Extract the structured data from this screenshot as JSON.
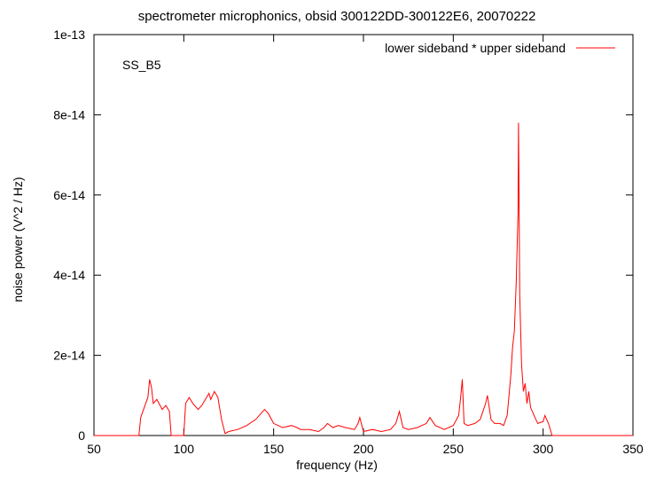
{
  "chart_data": {
    "type": "line",
    "title": "spectrometer microphonics, obsid 300122DD-300122E6, 20070222",
    "xlabel": "frequency (Hz)",
    "ylabel": "noise power (V^2 / Hz)",
    "annotation": "SS_B5",
    "xlim": [
      50,
      350
    ],
    "ylim": [
      0,
      1e-13
    ],
    "xticks": [
      50,
      100,
      150,
      200,
      250,
      300,
      350
    ],
    "xtick_labels": [
      "50",
      "100",
      "150",
      "200",
      "250",
      "300",
      "350"
    ],
    "yticks": [
      0,
      2e-14,
      4e-14,
      6e-14,
      8e-14,
      1e-13
    ],
    "ytick_labels": [
      "0",
      "2e-14",
      "4e-14",
      "6e-14",
      "8e-14",
      "1e-13"
    ],
    "grid": false,
    "legend_position": "top-right",
    "series": [
      {
        "name": "lower sideband * upper sideband",
        "color": "#ff0000",
        "x": [
          50,
          75,
          76,
          78,
          80,
          81,
          82,
          83,
          85,
          88,
          90,
          92,
          93,
          94,
          100,
          101,
          103,
          105,
          108,
          110,
          112,
          114,
          115,
          117,
          119,
          121,
          123,
          125,
          130,
          135,
          140,
          143,
          145,
          147,
          150,
          155,
          160,
          163,
          165,
          170,
          175,
          178,
          180,
          183,
          186,
          190,
          195,
          197,
          198,
          200,
          205,
          210,
          215,
          218,
          220,
          222,
          225,
          230,
          235,
          237,
          240,
          245,
          250,
          253,
          254,
          255,
          256,
          258,
          262,
          265,
          268,
          269,
          270,
          271,
          273,
          276,
          278,
          280,
          281,
          282,
          283,
          284,
          285,
          286,
          286.3,
          286.6,
          287,
          288,
          289,
          290,
          291,
          292,
          293,
          295,
          297,
          300,
          301,
          303,
          305,
          310,
          320,
          350
        ],
        "y": [
          0,
          0,
          4.5e-15,
          7e-15,
          9.5e-15,
          1.4e-14,
          1.2e-14,
          8e-15,
          9e-15,
          6.5e-15,
          7.5e-15,
          6e-15,
          0,
          0,
          0,
          8e-15,
          9.5e-15,
          8e-15,
          6.5e-15,
          7.5e-15,
          9e-15,
          1.05e-14,
          9e-15,
          1.1e-14,
          9.5e-15,
          4e-15,
          5e-16,
          1e-15,
          1.5e-15,
          2.5e-15,
          4e-15,
          5.5e-15,
          6.5e-15,
          5.5e-15,
          3e-15,
          2e-15,
          2.5e-15,
          2e-15,
          1.5e-15,
          1.5e-15,
          1e-15,
          2e-15,
          3e-15,
          2e-15,
          2.5e-15,
          2e-15,
          1.5e-15,
          3e-15,
          4.5e-15,
          1e-15,
          1.5e-15,
          1e-15,
          1.5e-15,
          3e-15,
          6e-15,
          2e-15,
          1.5e-15,
          2e-15,
          3e-15,
          4.5e-15,
          2.5e-15,
          1.5e-15,
          2.5e-15,
          5e-15,
          9e-15,
          1.4e-14,
          3e-15,
          2.5e-15,
          3e-15,
          4e-15,
          8e-15,
          1e-14,
          7e-15,
          4e-15,
          3e-15,
          3e-15,
          2.5e-15,
          5e-15,
          1e-14,
          1.5e-14,
          2.2e-14,
          2.6e-14,
          3.8e-14,
          5.5e-14,
          7.8e-14,
          6e-14,
          3.5e-14,
          1.8e-14,
          1.1e-14,
          1.3e-14,
          8e-15,
          1.1e-14,
          7e-15,
          5e-15,
          3e-15,
          3.5e-15,
          5e-15,
          3e-15,
          0,
          0,
          0,
          0
        ]
      }
    ]
  }
}
